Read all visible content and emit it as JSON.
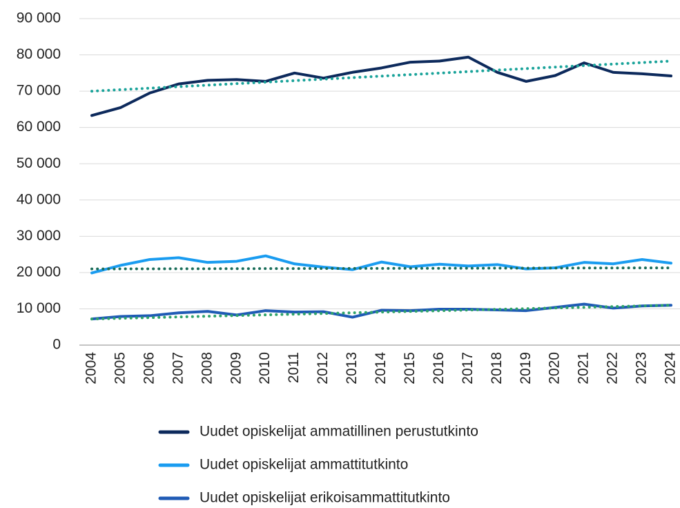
{
  "chart_data": {
    "type": "line",
    "categories": [
      "2004",
      "2005",
      "2006",
      "2007",
      "2008",
      "2009",
      "2010",
      "2011",
      "2012",
      "2013",
      "2014",
      "2015",
      "2016",
      "2017",
      "2018",
      "2019",
      "2020",
      "2021",
      "2022",
      "2023",
      "2024"
    ],
    "series": [
      {
        "name": "Uudet opiskelijat ammatillinen perustutkinto",
        "color": "#0d2a5c",
        "values": [
          63300,
          65500,
          69500,
          72000,
          73000,
          73200,
          72700,
          75000,
          73600,
          75200,
          76400,
          78000,
          78300,
          79400,
          75200,
          72700,
          74300,
          77800,
          75200,
          74800,
          74200
        ]
      },
      {
        "name": "Uudet opiskelijat ammattitutkinto",
        "color": "#1a9cf0",
        "values": [
          19900,
          22000,
          23600,
          24100,
          22800,
          23100,
          24600,
          22400,
          21500,
          20800,
          22900,
          21600,
          22300,
          21800,
          22200,
          21000,
          21300,
          22800,
          22400,
          23600,
          22600
        ]
      },
      {
        "name": "Uudet opiskelijat erikoisammattitutkinto",
        "color": "#1f5bb5",
        "values": [
          7200,
          7900,
          8100,
          8900,
          9300,
          8300,
          9500,
          9100,
          9200,
          7700,
          9600,
          9500,
          9900,
          9900,
          9700,
          9500,
          10400,
          11300,
          10200,
          10800,
          11000
        ]
      },
      {
        "color": "#1aa39a",
        "dotted": true,
        "values": [
          70000,
          70415,
          70830,
          71245,
          71660,
          72075,
          72490,
          72905,
          73320,
          73735,
          74150,
          74565,
          74980,
          75395,
          75810,
          76225,
          76640,
          77055,
          77470,
          77885,
          78300
        ]
      },
      {
        "color": "#1b6e5a",
        "dotted": true,
        "values": [
          21000,
          21015,
          21030,
          21045,
          21060,
          21075,
          21090,
          21105,
          21120,
          21135,
          21150,
          21165,
          21180,
          21195,
          21210,
          21225,
          21240,
          21255,
          21270,
          21285,
          21300
        ]
      },
      {
        "color": "#2ea36a",
        "dotted": true,
        "values": [
          7200,
          7390,
          7580,
          7770,
          7960,
          8150,
          8340,
          8530,
          8720,
          8910,
          9100,
          9290,
          9480,
          9670,
          9860,
          10050,
          10240,
          10430,
          10620,
          10810,
          11000
        ]
      }
    ],
    "ylim": [
      0,
      90000
    ],
    "yticks": [
      0,
      {
        "value": 10000,
        "label": "10 000"
      },
      {
        "value": 20000,
        "label": "20 000"
      },
      {
        "value": 30000,
        "label": "30 000"
      },
      {
        "value": 40000,
        "label": "40 000"
      },
      {
        "value": 50000,
        "label": "50 000"
      },
      {
        "value": 60000,
        "label": "60 000"
      },
      {
        "value": 70000,
        "label": "70 000"
      },
      {
        "value": 80000,
        "label": "80 000"
      },
      {
        "value": 90000,
        "label": "90 000"
      }
    ],
    "grid": true,
    "legend": "bottom"
  }
}
